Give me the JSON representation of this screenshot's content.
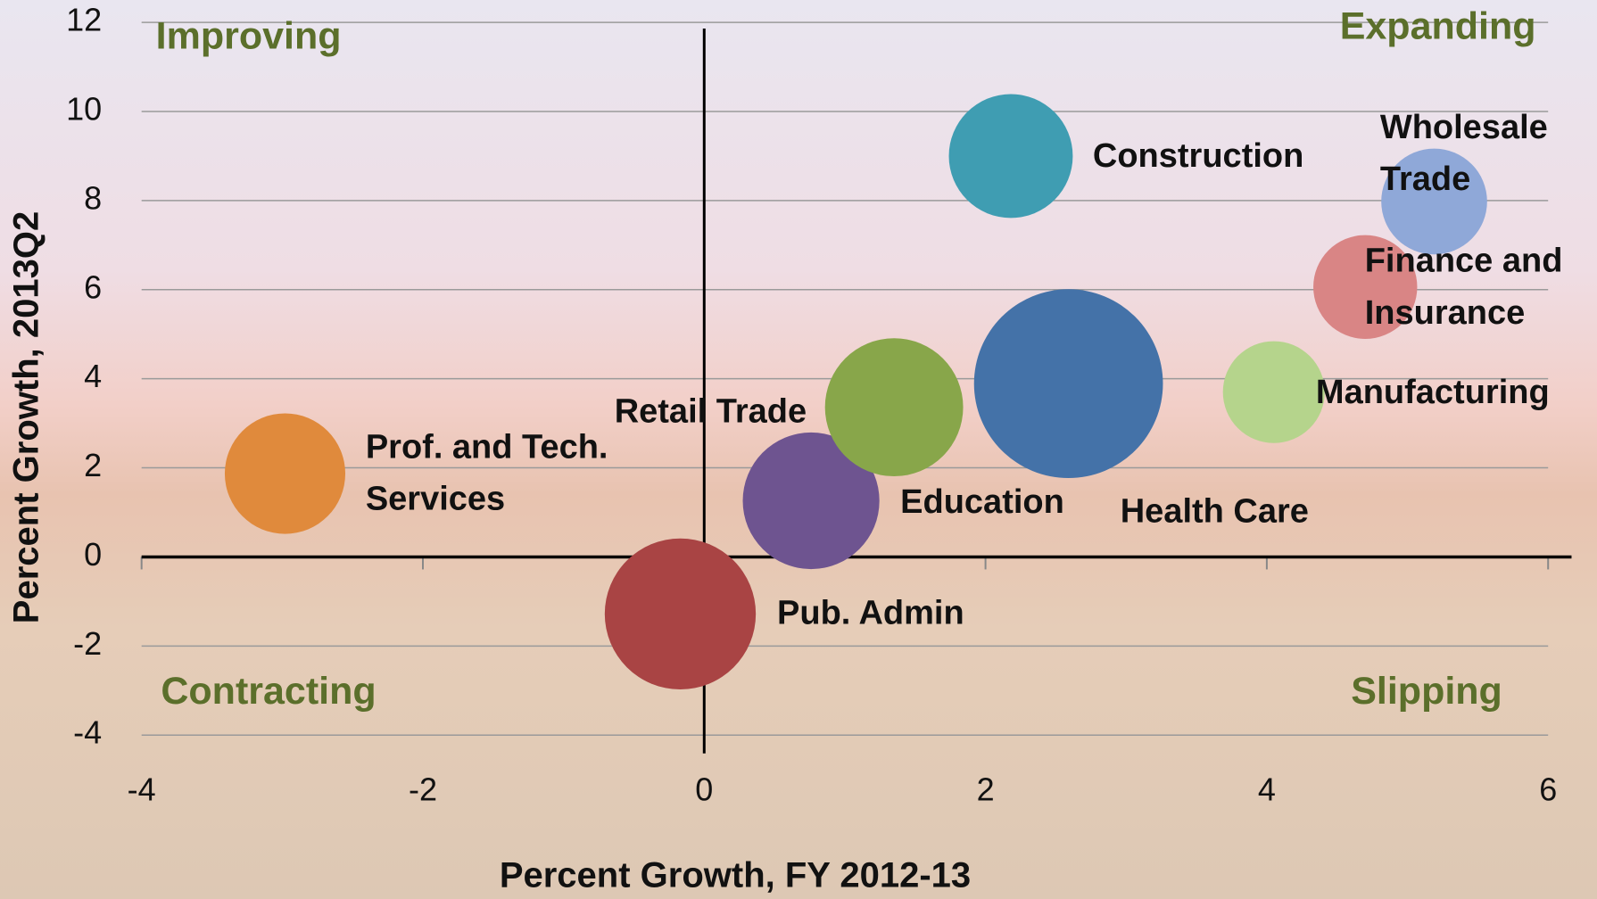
{
  "chart_data": {
    "type": "bubble",
    "x_label": "Percent Growth, FY 2012-13",
    "y_label": "Percent Growth, 2013Q2",
    "annotations": [
      "Improving",
      "Expanding",
      "Contracting",
      "Slipping"
    ],
    "categories": [
      [
        "Prof. and  Tech.",
        "Services"
      ],
      [
        "Pub. Admin"
      ],
      [
        "Education"
      ],
      [
        "Retail Trade"
      ],
      [
        "Construction"
      ],
      [
        "Health Care"
      ],
      [
        "Manufacturing"
      ],
      [
        "Finance and",
        "Insurance"
      ],
      [
        "Wholesale",
        "Trade"
      ]
    ],
    "x": [
      -2.98,
      -0.17,
      0.76,
      1.35,
      2.18,
      2.59,
      4.05,
      4.7,
      5.19
    ],
    "values": [
      1.87,
      -1.28,
      1.26,
      3.36,
      9.0,
      3.89,
      3.7,
      6.06,
      7.98
    ],
    "sizes": [
      35,
      55,
      45,
      46,
      37,
      86,
      25,
      26,
      27
    ],
    "colors": [
      "#e08a3c",
      "#a94444",
      "#6e5490",
      "#88a64a",
      "#3f9db2",
      "#4472a8",
      "#b5d48c",
      "#d98585",
      "#8fa8d8"
    ],
    "xlim": [
      -4,
      6
    ],
    "xticks": [
      -4,
      -2,
      0,
      2,
      4,
      6
    ],
    "ylim": [
      -4,
      12
    ],
    "yticks": [
      -4,
      -2,
      0,
      2,
      4,
      6,
      8,
      10,
      12
    ],
    "grid": true
  }
}
